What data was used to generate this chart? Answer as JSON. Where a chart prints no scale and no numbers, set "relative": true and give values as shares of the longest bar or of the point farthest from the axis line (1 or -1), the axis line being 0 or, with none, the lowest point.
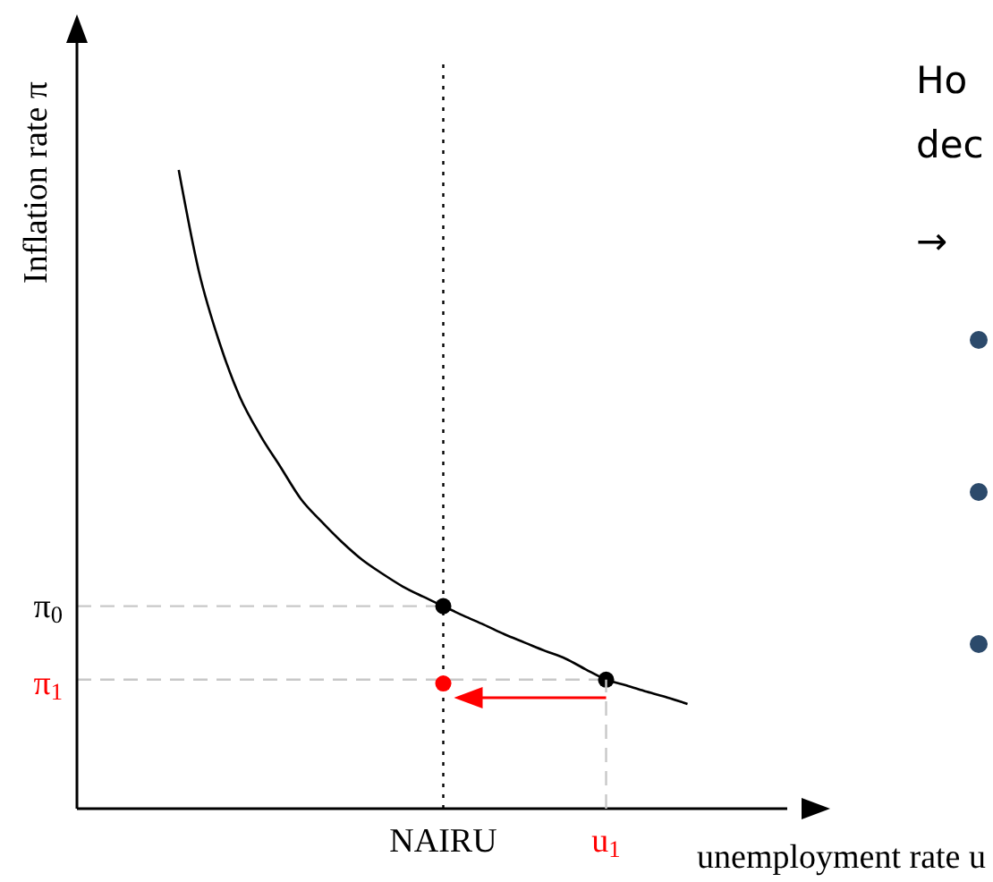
{
  "chart_data": {
    "type": "line",
    "relative": true,
    "ylabel": "Inflation rate π",
    "xlabel": "unemployment rate u",
    "categories": [
      null,
      null,
      null,
      null,
      null,
      null,
      null,
      null,
      null,
      null,
      null,
      null,
      null,
      null,
      null,
      null,
      null,
      null,
      "NAIRU",
      null,
      null,
      null,
      null,
      null,
      null,
      null,
      "u$_{1}$",
      null,
      null,
      null,
      null,
      null,
      null,
      null,
      null
    ],
    "series": [
      {
        "color": "#000000",
        "values": [
          null,
          null,
          null,
          null,
          null,
          1,
          0.84,
          0.73,
          0.645,
          0.585,
          0.535,
          0.485,
          0.45,
          0.418,
          0.39,
          0.368,
          0.348,
          0.332,
          0.317,
          0.302,
          0.288,
          0.273,
          0.26,
          0.247,
          0.235,
          0.218,
          0.202,
          0.193,
          0.183,
          0.174,
          0.164,
          null,
          null,
          null,
          null
        ]
      },
      {
        "color": "#c8c8c8",
        "line_style": "dashed",
        "values": [
          0.317,
          0.317,
          0.317,
          0.317,
          0.317,
          0.317,
          0.317,
          0.317,
          0.317,
          0.317,
          0.317,
          0.317,
          0.317,
          0.317,
          0.317,
          0.317,
          0.317,
          0.317,
          0.317,
          null,
          null,
          null,
          null,
          null,
          null,
          null,
          null,
          null,
          null,
          null,
          null,
          null,
          null,
          null,
          null
        ]
      },
      {
        "color": "#c8c8c8",
        "line_style": "dashed",
        "values": [
          0.202,
          0.202,
          0.202,
          0.202,
          0.202,
          0.202,
          0.202,
          0.202,
          0.202,
          0.202,
          0.202,
          0.202,
          0.202,
          0.202,
          0.202,
          0.202,
          0.202,
          0.202,
          0.202,
          0.202,
          0.202,
          0.202,
          0.202,
          0.202,
          0.202,
          0.202,
          0.202,
          null,
          null,
          null,
          null,
          null,
          null,
          null,
          null
        ]
      },
      {
        "type": "scatter",
        "color": "#000000",
        "marker": "circle",
        "x": [
          "NAIRU",
          "u$_{1}$"
        ],
        "values": [
          0.317,
          0.202
        ]
      },
      {
        "type": "scatter",
        "color": "#ff0000",
        "marker": "circle",
        "x": [
          "NAIRU"
        ],
        "values": [
          0.196
        ]
      }
    ],
    "ref_lines": [
      {
        "axis": "x",
        "value": "NAIRU",
        "color": "#000000",
        "line_style": "dotted"
      }
    ],
    "annotations": [
      "π$_{0}$",
      "π$_{1}$",
      "Ho",
      "dec",
      "→"
    ]
  }
}
